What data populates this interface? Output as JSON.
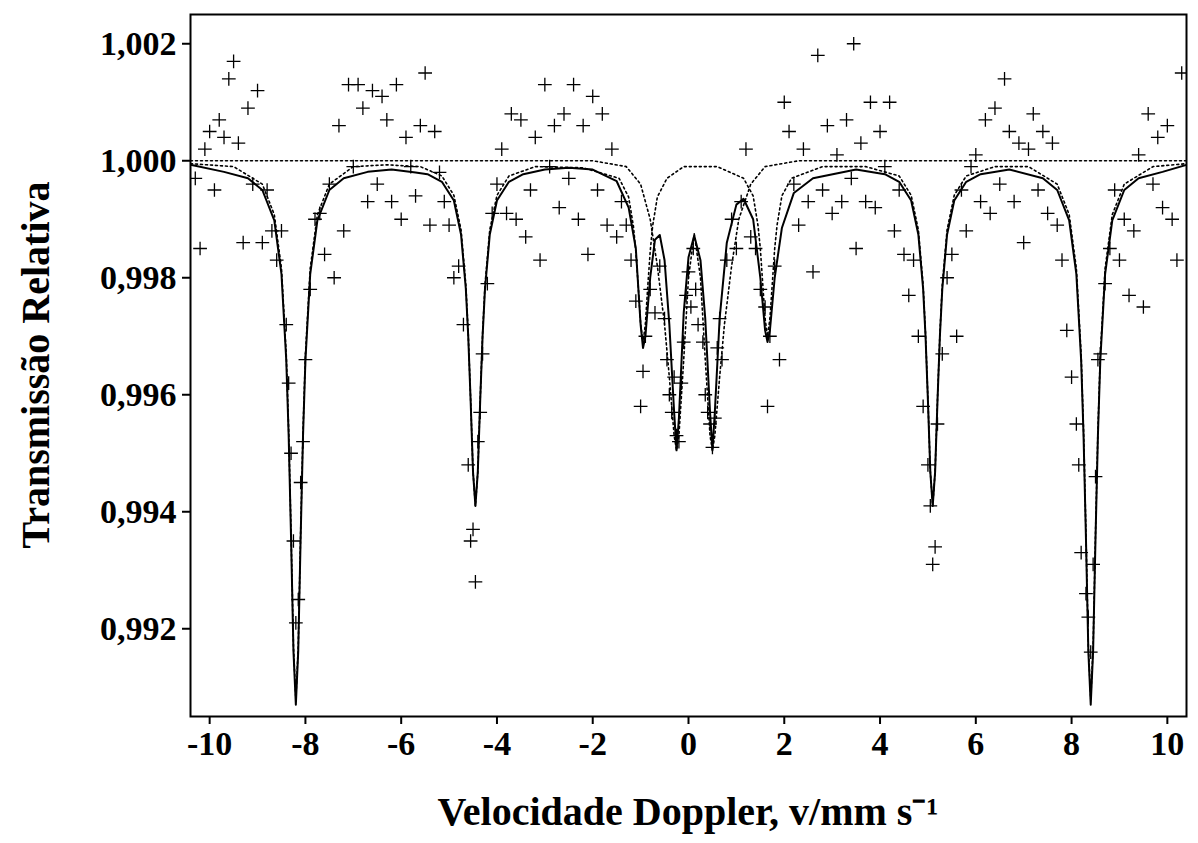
{
  "chart_data": {
    "type": "scatter",
    "x_label": "Velocidade Doppler, v/mm s⁻¹",
    "y_label": "Transmissão Relativa",
    "xlim": [
      -10.4,
      10.4
    ],
    "xticks": [
      -10,
      -8,
      -6,
      -4,
      -2,
      0,
      2,
      4,
      6,
      8,
      10
    ],
    "ylim": [
      0.9905,
      1.0025
    ],
    "yticks": [
      {
        "value": 0.992,
        "label": "0,992"
      },
      {
        "value": 0.994,
        "label": "0,994"
      },
      {
        "value": 0.996,
        "label": "0,996"
      },
      {
        "value": 0.998,
        "label": "0,998"
      },
      {
        "value": 1.0,
        "label": "1,000"
      },
      {
        "value": 1.002,
        "label": "1,002"
      }
    ],
    "grid": false,
    "series": [
      {
        "type": "scatter",
        "marker": "plus",
        "color": "#000000",
        "x": [
          -10.3,
          -10.2,
          -10.1,
          -10.0,
          -9.9,
          -9.8,
          -9.7,
          -9.6,
          -9.5,
          -9.4,
          -9.3,
          -9.2,
          -9.1,
          -9.0,
          -8.9,
          -8.8,
          -8.7,
          -8.6,
          -8.5,
          -8.4,
          -8.35,
          -8.3,
          -8.25,
          -8.2,
          -8.15,
          -8.1,
          -8.05,
          -8.0,
          -7.9,
          -7.8,
          -7.7,
          -7.6,
          -7.5,
          -7.4,
          -7.3,
          -7.2,
          -7.1,
          -7.0,
          -6.9,
          -6.8,
          -6.7,
          -6.6,
          -6.5,
          -6.4,
          -6.3,
          -6.2,
          -6.1,
          -6.0,
          -5.9,
          -5.8,
          -5.7,
          -5.6,
          -5.5,
          -5.4,
          -5.3,
          -5.2,
          -5.1,
          -5.0,
          -4.9,
          -4.8,
          -4.7,
          -4.6,
          -4.55,
          -4.5,
          -4.45,
          -4.4,
          -4.35,
          -4.3,
          -4.2,
          -4.1,
          -4.0,
          -3.9,
          -3.8,
          -3.7,
          -3.6,
          -3.5,
          -3.4,
          -3.3,
          -3.2,
          -3.1,
          -3.0,
          -2.9,
          -2.8,
          -2.7,
          -2.6,
          -2.5,
          -2.4,
          -2.3,
          -2.2,
          -2.1,
          -2.0,
          -1.9,
          -1.8,
          -1.7,
          -1.6,
          -1.5,
          -1.4,
          -1.3,
          -1.2,
          -1.1,
          -1.0,
          -0.95,
          -0.9,
          -0.8,
          -0.7,
          -0.6,
          -0.5,
          -0.45,
          -0.4,
          -0.35,
          -0.3,
          -0.25,
          -0.2,
          -0.15,
          -0.1,
          -0.05,
          0.0,
          0.05,
          0.1,
          0.15,
          0.2,
          0.3,
          0.35,
          0.4,
          0.45,
          0.5,
          0.55,
          0.6,
          0.65,
          0.7,
          0.8,
          0.9,
          1.0,
          1.1,
          1.2,
          1.3,
          1.4,
          1.5,
          1.6,
          1.65,
          1.7,
          1.8,
          1.9,
          2.0,
          2.1,
          2.2,
          2.3,
          2.4,
          2.5,
          2.6,
          2.7,
          2.8,
          2.9,
          3.0,
          3.1,
          3.2,
          3.3,
          3.4,
          3.45,
          3.5,
          3.6,
          3.7,
          3.8,
          3.9,
          4.0,
          4.1,
          4.2,
          4.3,
          4.4,
          4.5,
          4.6,
          4.7,
          4.8,
          4.9,
          5.0,
          5.05,
          5.1,
          5.15,
          5.2,
          5.3,
          5.4,
          5.5,
          5.6,
          5.7,
          5.8,
          5.9,
          6.0,
          6.1,
          6.2,
          6.3,
          6.4,
          6.5,
          6.6,
          6.7,
          6.8,
          6.9,
          7.0,
          7.1,
          7.2,
          7.3,
          7.4,
          7.5,
          7.6,
          7.7,
          7.8,
          7.9,
          8.0,
          8.1,
          8.15,
          8.2,
          8.3,
          8.35,
          8.4,
          8.45,
          8.5,
          8.55,
          8.6,
          8.7,
          8.8,
          8.9,
          9.0,
          9.1,
          9.2,
          9.3,
          9.4,
          9.5,
          9.6,
          9.7,
          9.8,
          9.9,
          10.0,
          10.1,
          10.2,
          10.3
        ],
        "values": [
          0.9997,
          0.9985,
          1.0002,
          1.0005,
          0.9995,
          1.0007,
          1.0004,
          1.0014,
          1.0017,
          1.0003,
          0.9986,
          1.0009,
          0.9996,
          1.0012,
          0.9986,
          0.9995,
          0.9988,
          0.9983,
          0.9988,
          0.9972,
          0.9962,
          0.995,
          0.9935,
          0.9921,
          0.9925,
          0.9945,
          0.9952,
          0.9966,
          0.9978,
          0.999,
          0.9991,
          0.9984,
          0.9996,
          0.998,
          1.0006,
          0.9988,
          1.0013,
          0.9999,
          1.0013,
          1.0009,
          0.9993,
          1.0012,
          0.9996,
          1.0011,
          1.0007,
          0.9993,
          1.0013,
          0.999,
          1.0004,
          0.9999,
          0.9994,
          1.0006,
          1.0015,
          0.9989,
          1.0005,
          0.9998,
          0.9993,
          0.9989,
          0.998,
          0.9982,
          0.9972,
          0.9948,
          0.9935,
          0.9937,
          0.9928,
          0.9952,
          0.9957,
          0.9967,
          0.9979,
          0.9991,
          0.9996,
          1.0002,
          0.9991,
          1.0008,
          0.999,
          1.0007,
          0.9987,
          0.9995,
          1.0004,
          0.9983,
          1.0013,
          0.9999,
          1.0006,
          0.9992,
          1.0008,
          0.9997,
          1.0013,
          0.999,
          1.0006,
          0.9984,
          1.0011,
          0.9995,
          1.0008,
          0.9989,
          1.0002,
          0.9987,
          0.9993,
          0.9989,
          0.9983,
          0.9976,
          0.9958,
          0.9964,
          0.997,
          0.9978,
          0.9974,
          0.9982,
          0.9973,
          0.9966,
          0.996,
          0.9957,
          0.9963,
          0.9953,
          0.9952,
          0.9962,
          0.9969,
          0.9977,
          0.9981,
          0.9975,
          0.9985,
          0.9978,
          0.9972,
          0.9969,
          0.996,
          0.9957,
          0.9955,
          0.9951,
          0.9956,
          0.9968,
          0.9973,
          0.9966,
          0.9983,
          0.999,
          0.9985,
          0.9993,
          1.0002,
          0.9987,
          0.9985,
          0.9978,
          0.9975,
          0.9958,
          0.997,
          0.9982,
          0.9966,
          1.001,
          1.0005,
          0.9996,
          0.9989,
          1.0002,
          0.9993,
          0.9981,
          1.0018,
          0.9995,
          1.0006,
          0.9991,
          1.0001,
          0.9993,
          1.0007,
          0.9997,
          1.002,
          0.9985,
          1.0003,
          0.9993,
          1.001,
          0.9992,
          1.0005,
          0.9999,
          1.001,
          0.9988,
          0.9995,
          0.9984,
          0.9977,
          0.9983,
          0.997,
          0.9958,
          0.9948,
          0.9941,
          0.9931,
          0.9934,
          0.9955,
          0.9967,
          0.998,
          0.9984,
          0.997,
          0.9995,
          0.9988,
          0.9999,
          1.0001,
          0.9993,
          1.0007,
          0.9991,
          1.0009,
          0.9996,
          1.0014,
          1.0005,
          0.9993,
          1.0003,
          0.9986,
          1.0002,
          1.0008,
          0.9995,
          1.0005,
          0.9991,
          1.0003,
          0.9989,
          0.9983,
          0.9971,
          0.9963,
          0.9955,
          0.9948,
          0.9933,
          0.9926,
          0.9922,
          0.9916,
          0.9931,
          0.9946,
          0.9966,
          0.9967,
          0.9979,
          0.9985,
          0.9995,
          0.9983,
          0.999,
          0.9977,
          0.9988,
          1.0001,
          0.9975,
          1.0008,
          0.9996,
          1.0004,
          0.9992,
          1.0006,
          0.999,
          0.9983,
          1.0015
        ]
      },
      {
        "type": "line",
        "line_style": "solid",
        "color": "#000000",
        "x": [
          -10.4,
          -9.7,
          -9.2,
          -8.9,
          -8.65,
          -8.5,
          -8.4,
          -8.35,
          -8.3,
          -8.25,
          -8.2,
          -8.15,
          -8.1,
          -8.05,
          -8.0,
          -7.9,
          -7.75,
          -7.5,
          -7.2,
          -6.7,
          -6.2,
          -5.7,
          -5.45,
          -5.15,
          -4.9,
          -4.75,
          -4.65,
          -4.6,
          -4.55,
          -4.5,
          -4.45,
          -4.4,
          -4.35,
          -4.3,
          -4.25,
          -4.15,
          -4.0,
          -3.75,
          -3.45,
          -3.0,
          -2.5,
          -2.0,
          -1.5,
          -1.25,
          -1.1,
          -1.0,
          -0.95,
          -0.9,
          -0.8,
          -0.7,
          -0.6,
          -0.5,
          -0.4,
          -0.3,
          -0.25,
          -0.2,
          -0.1,
          0.0,
          0.12,
          0.25,
          0.35,
          0.45,
          0.5,
          0.55,
          0.65,
          0.8,
          1.0,
          1.15,
          1.35,
          1.5,
          1.6,
          1.65,
          1.7,
          1.8,
          1.95,
          2.2,
          2.6,
          3.5,
          4.1,
          4.4,
          4.65,
          4.8,
          4.9,
          4.95,
          5.0,
          5.05,
          5.1,
          5.15,
          5.2,
          5.25,
          5.3,
          5.4,
          5.55,
          5.8,
          6.1,
          6.7,
          7.4,
          7.7,
          7.95,
          8.1,
          8.2,
          8.25,
          8.3,
          8.35,
          8.4,
          8.45,
          8.5,
          8.55,
          8.6,
          8.7,
          8.85,
          9.1,
          9.4,
          9.9,
          10.4
        ],
        "values": [
          0.99993,
          0.99981,
          0.9997,
          0.9995,
          0.99898,
          0.99806,
          0.99659,
          0.9953,
          0.99355,
          0.99162,
          0.9907,
          0.99162,
          0.99355,
          0.9953,
          0.99659,
          0.99806,
          0.99898,
          0.9995,
          0.9997,
          0.99981,
          0.99985,
          0.9998,
          0.99977,
          0.99964,
          0.99932,
          0.99874,
          0.99781,
          0.997,
          0.9959,
          0.99468,
          0.9941,
          0.99468,
          0.9959,
          0.997,
          0.99781,
          0.99874,
          0.99932,
          0.99964,
          0.99977,
          0.99985,
          0.99988,
          0.99985,
          0.99965,
          0.9992,
          0.9985,
          0.9972,
          0.9968,
          0.997,
          0.998,
          0.99865,
          0.99873,
          0.9983,
          0.9972,
          0.9957,
          0.99505,
          0.9956,
          0.9974,
          0.99835,
          0.99872,
          0.9983,
          0.9973,
          0.9957,
          0.99505,
          0.9957,
          0.9973,
          0.9986,
          0.99925,
          0.99935,
          0.999,
          0.998,
          0.9971,
          0.9969,
          0.9971,
          0.998,
          0.99885,
          0.99945,
          0.9997,
          0.99985,
          0.99977,
          0.99964,
          0.99932,
          0.99874,
          0.99781,
          0.997,
          0.9959,
          0.99468,
          0.9941,
          0.99468,
          0.9959,
          0.997,
          0.99781,
          0.99874,
          0.99932,
          0.99964,
          0.99977,
          0.99985,
          0.9997,
          0.9995,
          0.99898,
          0.99806,
          0.99659,
          0.9953,
          0.99355,
          0.99162,
          0.9907,
          0.99162,
          0.99355,
          0.9953,
          0.99659,
          0.99806,
          0.99898,
          0.9995,
          0.9997,
          0.99981,
          0.99993
        ]
      },
      {
        "type": "line",
        "line_style": "dotted",
        "color": "#000000",
        "x": [
          -10.4,
          -9.5,
          -8.9,
          -8.65,
          -8.5,
          -8.4,
          -8.35,
          -8.3,
          -8.25,
          -8.2,
          -8.15,
          -8.1,
          -8.05,
          -8.0,
          -7.9,
          -7.75,
          -7.5,
          -7.0,
          -6.3,
          -5.6,
          -5.15,
          -4.9,
          -4.75,
          -4.65,
          -4.6,
          -4.55,
          -4.5,
          -4.45,
          -4.4,
          -4.35,
          -4.3,
          -4.25,
          -4.15,
          -4.0,
          -3.75,
          -3.2,
          -2.2,
          -1.45,
          -1.25,
          -1.15,
          -1.1,
          -1.05,
          -1.0,
          -0.95,
          -0.9,
          -0.85,
          -0.8,
          -0.75,
          -0.65,
          -0.45,
          -0.1,
          0.6,
          1.15,
          1.35,
          1.45,
          1.5,
          1.55,
          1.6,
          1.65,
          1.7,
          1.75,
          1.8,
          1.85,
          1.95,
          2.15,
          2.8,
          3.7,
          4.4,
          4.65,
          4.8,
          4.9,
          4.95,
          5.0,
          5.05,
          5.1,
          5.15,
          5.2,
          5.25,
          5.3,
          5.4,
          5.55,
          5.8,
          6.4,
          7.1,
          7.7,
          7.95,
          8.1,
          8.2,
          8.25,
          8.3,
          8.35,
          8.4,
          8.45,
          8.5,
          8.55,
          8.6,
          8.7,
          8.85,
          9.1,
          9.7,
          10.4
        ],
        "values": [
          0.99995,
          0.9999,
          0.9996,
          0.99908,
          0.99816,
          0.99669,
          0.9954,
          0.99365,
          0.9917,
          0.9908,
          0.9917,
          0.99365,
          0.9954,
          0.99669,
          0.99816,
          0.99908,
          0.9996,
          0.9999,
          0.99993,
          0.9999,
          0.99974,
          0.99941,
          0.99882,
          0.99788,
          0.99705,
          0.99593,
          0.99469,
          0.9941,
          0.99469,
          0.99593,
          0.99705,
          0.99788,
          0.99882,
          0.99941,
          0.99974,
          0.9999,
          0.99988,
          0.9997,
          0.99938,
          0.99888,
          0.99845,
          0.99786,
          0.99721,
          0.9969,
          0.99721,
          0.99786,
          0.99845,
          0.99888,
          0.99938,
          0.9997,
          0.9999,
          0.9999,
          0.9997,
          0.9994,
          0.9989,
          0.9985,
          0.9979,
          0.9973,
          0.997,
          0.9973,
          0.9979,
          0.9985,
          0.9989,
          0.9994,
          0.9997,
          0.9999,
          0.9999,
          0.99974,
          0.99941,
          0.99882,
          0.99788,
          0.99705,
          0.99593,
          0.99469,
          0.9941,
          0.99469,
          0.99593,
          0.99705,
          0.99788,
          0.99882,
          0.99941,
          0.99974,
          0.9999,
          0.9999,
          0.9996,
          0.99908,
          0.99816,
          0.99669,
          0.9954,
          0.99365,
          0.9917,
          0.9908,
          0.9917,
          0.99365,
          0.9954,
          0.99669,
          0.99816,
          0.99908,
          0.9996,
          0.9999,
          0.99995
        ]
      },
      {
        "type": "line",
        "line_style": "dotted",
        "color": "#000000",
        "x": [
          -10.4,
          -2.0,
          -1.3,
          -1.0,
          -0.8,
          -0.65,
          -0.5,
          -0.4,
          -0.3,
          -0.25,
          -0.2,
          -0.1,
          0.0,
          0.12,
          0.25,
          0.35,
          0.45,
          0.5,
          0.55,
          0.65,
          0.75,
          0.9,
          1.05,
          1.3,
          1.6,
          2.3,
          10.4
        ],
        "values": [
          1.0,
          1.0,
          0.9999,
          0.9996,
          0.999,
          0.9982,
          0.9972,
          0.9963,
          0.9953,
          0.99505,
          0.9953,
          0.9966,
          0.998,
          0.99875,
          0.998,
          0.9966,
          0.9953,
          0.99505,
          0.9953,
          0.9963,
          0.9972,
          0.9982,
          0.999,
          0.9996,
          0.9999,
          1.0,
          1.0
        ]
      }
    ]
  }
}
